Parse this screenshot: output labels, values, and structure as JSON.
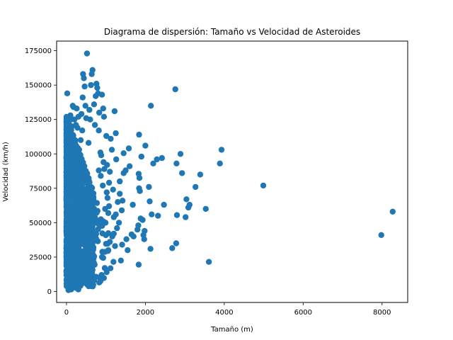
{
  "chart_data": {
    "type": "scatter",
    "title": "Diagrama de dispersión: Tamaño vs Velocidad de Asteroides",
    "xlabel": "Tamaño (m)",
    "ylabel": "Velocidad (km/h)",
    "xlim": [
      -250,
      8650
    ],
    "ylim": [
      -8000,
      182000
    ],
    "x_ticks": [
      0,
      2000,
      4000,
      6000,
      8000
    ],
    "x_tick_labels": [
      "0",
      "2000",
      "4000",
      "6000",
      "8000"
    ],
    "y_ticks": [
      0,
      25000,
      50000,
      75000,
      100000,
      125000,
      150000,
      175000
    ],
    "y_tick_labels": [
      "0",
      "25000",
      "50000",
      "75000",
      "100000",
      "125000",
      "150000",
      "175000"
    ],
    "grid": false,
    "legend": "none",
    "color": "#1f77b4",
    "series": [
      {
        "points": [
          [
            8270,
            58000
          ],
          [
            7980,
            41000
          ],
          [
            4990,
            77000
          ],
          [
            3930,
            103000
          ],
          [
            3890,
            93000
          ],
          [
            3610,
            21500
          ],
          [
            3530,
            60000
          ],
          [
            3390,
            85000
          ],
          [
            3270,
            76000
          ],
          [
            3120,
            63000
          ],
          [
            3090,
            61000
          ],
          [
            3040,
            67000
          ],
          [
            3020,
            54000
          ],
          [
            2930,
            86000
          ],
          [
            2890,
            100000
          ],
          [
            2800,
            55500
          ],
          [
            2790,
            93000
          ],
          [
            2780,
            35000
          ],
          [
            2760,
            147000
          ],
          [
            2680,
            31500
          ],
          [
            2470,
            63000
          ],
          [
            2420,
            97000
          ],
          [
            2320,
            55000
          ],
          [
            2290,
            96000
          ],
          [
            2200,
            93000
          ],
          [
            2160,
            56000
          ],
          [
            2140,
            135000
          ],
          [
            2130,
            31000
          ],
          [
            2110,
            65500
          ],
          [
            2090,
            76000
          ],
          [
            2000,
            106000
          ],
          [
            1980,
            44000
          ],
          [
            1970,
            38000
          ],
          [
            1950,
            41000
          ],
          [
            1930,
            52000
          ],
          [
            1900,
            98000
          ],
          [
            1880,
            53000
          ],
          [
            1860,
            73000
          ],
          [
            1850,
            82500
          ],
          [
            1840,
            75000
          ],
          [
            1830,
            85500
          ],
          [
            1820,
            48000
          ],
          [
            1830,
            19500
          ],
          [
            1840,
            114000
          ],
          [
            1800,
            45000
          ],
          [
            1700,
            40000
          ],
          [
            1680,
            63000
          ],
          [
            1650,
            41500
          ],
          [
            1600,
            91000
          ],
          [
            1580,
            104000
          ],
          [
            1550,
            30000
          ],
          [
            1520,
            38000
          ],
          [
            1500,
            88000
          ],
          [
            1450,
            100500
          ],
          [
            1420,
            66000
          ],
          [
            1410,
            34000
          ],
          [
            1400,
            59000
          ],
          [
            1380,
            22500
          ],
          [
            1350,
            80000
          ],
          [
            1330,
            50000
          ],
          [
            1300,
            65000
          ],
          [
            1280,
            46000
          ],
          [
            1260,
            96000
          ],
          [
            1250,
            115000
          ],
          [
            1230,
            33000
          ],
          [
            1220,
            131000
          ],
          [
            1200,
            54000
          ],
          [
            1190,
            21500
          ],
          [
            1180,
            74000
          ],
          [
            1160,
            40000
          ],
          [
            1150,
            103000
          ],
          [
            1120,
            111000
          ],
          [
            1100,
            87000
          ],
          [
            1080,
            62000
          ],
          [
            1060,
            30000
          ],
          [
            1030,
            92000
          ],
          [
            1010,
            113000
          ],
          [
            990,
            50000
          ],
          [
            970,
            17000
          ],
          [
            950,
            127000
          ],
          [
            930,
            133000
          ],
          [
            900,
            143000
          ],
          [
            890,
            12000
          ],
          [
            880,
            99000
          ],
          [
            870,
            84000
          ],
          [
            860,
            7500
          ],
          [
            840,
            10000
          ],
          [
            830,
            130000
          ],
          [
            820,
            117000
          ],
          [
            800,
            144000
          ],
          [
            780,
            148000
          ],
          [
            760,
            151000
          ],
          [
            740,
            142000
          ],
          [
            720,
            121000
          ],
          [
            700,
            136000
          ],
          [
            680,
            5000
          ],
          [
            660,
            161000
          ],
          [
            640,
            158000
          ],
          [
            620,
            150000
          ],
          [
            600,
            125000
          ],
          [
            580,
            132000
          ],
          [
            560,
            108000
          ],
          [
            540,
            14000
          ],
          [
            520,
            173000
          ],
          [
            500,
            126000
          ],
          [
            480,
            135000
          ],
          [
            460,
            149000
          ],
          [
            440,
            155000
          ],
          [
            420,
            158000
          ],
          [
            410,
            141000
          ],
          [
            400,
            117000
          ],
          [
            380,
            129000
          ],
          [
            360,
            110000
          ],
          [
            340,
            98000
          ],
          [
            320,
            103000
          ],
          [
            300,
            127000
          ],
          [
            280,
            119000
          ],
          [
            260,
            133000
          ],
          [
            240,
            121000
          ],
          [
            220,
            110000
          ],
          [
            200,
            125000
          ],
          [
            180,
            134000
          ],
          [
            160,
            135000
          ],
          [
            140,
            120000
          ],
          [
            120,
            125000
          ],
          [
            100,
            128000
          ],
          [
            80,
            121000
          ],
          [
            60,
            111000
          ],
          [
            20,
            144000
          ],
          [
            10,
            112000
          ],
          [
            150,
            3000
          ],
          [
            250,
            2500
          ],
          [
            300,
            1500
          ],
          [
            350,
            4000
          ],
          [
            50,
            1000
          ],
          [
            120,
            1500
          ],
          [
            90,
            2000
          ],
          [
            700,
            8000
          ],
          [
            650,
            20000
          ],
          [
            900,
            25000
          ],
          [
            1100,
            36000
          ],
          [
            1200,
            42000
          ],
          [
            1250,
            56000
          ],
          [
            1350,
            71000
          ],
          [
            1450,
            86000
          ],
          [
            1020,
            72000
          ],
          [
            1040,
            68000
          ],
          [
            1060,
            57000
          ],
          [
            1080,
            79000
          ],
          [
            980,
            60000
          ],
          [
            960,
            89000
          ],
          [
            940,
            94000
          ],
          [
            920,
            77000
          ],
          [
            860,
            101000
          ],
          [
            820,
            88000
          ]
        ]
      }
    ]
  }
}
